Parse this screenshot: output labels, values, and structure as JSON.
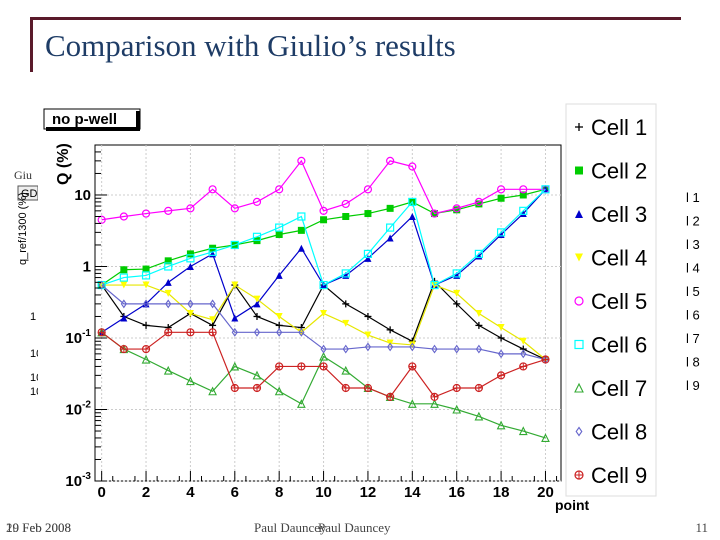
{
  "slide": {
    "title": "Comparison with Giulio’s results",
    "back_label": "Giu",
    "footer_date": "19 Feb 2008",
    "footer_date_overlap": "20 Feb 2008",
    "footer_author": "Paul Dauncey",
    "footer_author_overlap": "Paul Dauncey",
    "page_number": "11"
  },
  "fragments": {
    "back_tab": "GD",
    "back_ylabel": "q_ref/1300 (%)",
    "back_ticks": [
      "1",
      "10",
      "10",
      "10"
    ],
    "right_labels": [
      "l 1",
      "l 2",
      "l 3",
      "l 4",
      "l 5",
      "l 6",
      "l 7",
      "l 8",
      "l 9"
    ]
  },
  "chart_data": {
    "type": "scatter",
    "title": "no p-well",
    "xlabel": "point",
    "ylabel": "Q (%)",
    "log_y": true,
    "xlim": [
      -0.3,
      20.7
    ],
    "ylim": [
      0.001,
      50
    ],
    "x_ticks": [
      "0",
      "2",
      "4",
      "6",
      "8",
      "10",
      "12",
      "14",
      "16",
      "18",
      "20"
    ],
    "y_ticks": [
      {
        "value": 10,
        "label": "10"
      },
      {
        "value": 1,
        "label": "1"
      },
      {
        "value": 0.1,
        "label": "10^-1"
      },
      {
        "value": 0.01,
        "label": "10^-2"
      },
      {
        "value": 0.001,
        "label": "10^-3"
      }
    ],
    "grid": true,
    "legend_position": "right",
    "x": [
      0,
      1,
      2,
      3,
      4,
      5,
      6,
      7,
      8,
      9,
      10,
      11,
      12,
      13,
      14,
      15,
      16,
      17,
      18,
      19,
      20
    ],
    "series": [
      {
        "name": "Cell 1",
        "marker": "plus",
        "color": "#000000",
        "values": [
          0.55,
          0.2,
          0.15,
          0.14,
          0.22,
          0.15,
          0.55,
          0.2,
          0.15,
          0.14,
          0.55,
          0.3,
          0.2,
          0.13,
          0.09,
          0.62,
          0.3,
          0.15,
          0.1,
          0.07,
          0.05
        ]
      },
      {
        "name": "Cell 2",
        "marker": "square-filled",
        "color": "#00cc00",
        "values": [
          0.55,
          0.9,
          0.92,
          1.2,
          1.5,
          1.8,
          2.0,
          2.3,
          2.8,
          3.2,
          4.5,
          5.0,
          5.5,
          6.5,
          8.0,
          5.5,
          6.2,
          7.5,
          9.0,
          10.0,
          12.0
        ]
      },
      {
        "name": "Cell 3",
        "marker": "triangle-up-filled",
        "color": "#0000cc",
        "values": [
          0.12,
          0.19,
          0.3,
          0.6,
          1.0,
          1.5,
          0.19,
          0.3,
          0.75,
          1.8,
          0.55,
          0.75,
          1.3,
          2.5,
          5.0,
          0.55,
          0.75,
          1.4,
          2.8,
          5.5,
          12.0
        ]
      },
      {
        "name": "Cell 4",
        "marker": "triangle-down-filled",
        "color": "#ffff00",
        "values": [
          0.55,
          0.55,
          0.55,
          0.42,
          0.22,
          0.18,
          0.55,
          0.35,
          0.2,
          0.12,
          0.22,
          0.16,
          0.11,
          0.085,
          0.08,
          0.55,
          0.42,
          0.22,
          0.14,
          0.09,
          0.05
        ]
      },
      {
        "name": "Cell 5",
        "marker": "circle-open",
        "color": "#ff00ff",
        "values": [
          4.5,
          5.0,
          5.5,
          6.0,
          6.5,
          12.0,
          6.5,
          8.0,
          12.0,
          30.0,
          6.0,
          7.5,
          12.0,
          30.0,
          25.0,
          5.5,
          6.5,
          8.0,
          12.0,
          12.0,
          12.0
        ]
      },
      {
        "name": "Cell 6",
        "marker": "square-open",
        "color": "#00ffff",
        "values": [
          0.55,
          0.7,
          0.75,
          1.0,
          1.3,
          1.6,
          2.0,
          2.6,
          3.5,
          5.0,
          0.55,
          0.8,
          1.5,
          3.5,
          8.0,
          0.55,
          0.8,
          1.5,
          3.0,
          6.0,
          12.0
        ]
      },
      {
        "name": "Cell 7",
        "marker": "triangle-up-open",
        "color": "#33aa33",
        "values": [
          0.12,
          0.07,
          0.05,
          0.035,
          0.025,
          0.018,
          0.04,
          0.03,
          0.018,
          0.012,
          0.055,
          0.035,
          0.02,
          0.015,
          0.012,
          0.012,
          0.01,
          0.008,
          0.006,
          0.005,
          0.004
        ]
      },
      {
        "name": "Cell 8",
        "marker": "diamond-open",
        "color": "#6666cc",
        "values": [
          0.55,
          0.3,
          0.3,
          0.3,
          0.3,
          0.3,
          0.12,
          0.12,
          0.12,
          0.12,
          0.07,
          0.07,
          0.075,
          0.075,
          0.075,
          0.07,
          0.07,
          0.07,
          0.06,
          0.06,
          0.05
        ]
      },
      {
        "name": "Cell 9",
        "marker": "circle-cross",
        "color": "#cc2222",
        "values": [
          0.12,
          0.07,
          0.07,
          0.12,
          0.12,
          0.12,
          0.02,
          0.02,
          0.04,
          0.04,
          0.04,
          0.02,
          0.02,
          0.015,
          0.04,
          0.015,
          0.02,
          0.02,
          0.03,
          0.04,
          0.05
        ]
      }
    ]
  }
}
